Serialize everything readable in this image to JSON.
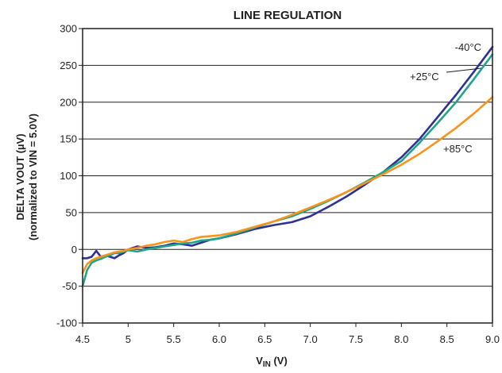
{
  "chart_data": {
    "type": "line",
    "title": "LINE REGULATION",
    "xlabel": {
      "main": "V",
      "sub": "IN",
      "unit": " (V)"
    },
    "ylabel": [
      "DELTA VOUT (µV)",
      "(normalized to VIN = 5.0V)"
    ],
    "xlim": [
      4.5,
      9.0
    ],
    "ylim": [
      -100,
      300
    ],
    "x_ticks": [
      4.5,
      5,
      5.5,
      6.0,
      6.5,
      7.0,
      7.5,
      8.0,
      8.5,
      9.0
    ],
    "x_tick_labels": [
      "4.5",
      "5",
      "5.5",
      "6.0",
      "6.5",
      "7.0",
      "7.5",
      "8.0",
      "8.5",
      "9.0"
    ],
    "y_ticks": [
      -100,
      -50,
      0,
      50,
      100,
      150,
      200,
      250,
      300
    ],
    "y_tick_labels": [
      "-100",
      "-50",
      "0",
      "50",
      "100",
      "150",
      "200",
      "250",
      "300"
    ],
    "grid": "horizontal",
    "series": [
      {
        "name": "-40°C",
        "color": "#2e3192",
        "x": [
          4.5,
          4.55,
          4.6,
          4.65,
          4.7,
          4.75,
          4.8,
          4.85,
          4.9,
          4.95,
          5.0,
          5.1,
          5.2,
          5.3,
          5.4,
          5.5,
          5.6,
          5.7,
          5.8,
          5.9,
          6.0,
          6.2,
          6.4,
          6.6,
          6.8,
          7.0,
          7.2,
          7.4,
          7.6,
          7.8,
          8.0,
          8.2,
          8.4,
          8.6,
          8.8,
          9.0
        ],
        "y": [
          -12,
          -12,
          -10,
          -2,
          -10,
          -8,
          -10,
          -12,
          -8,
          -5,
          0,
          4,
          2,
          3,
          5,
          8,
          7,
          5,
          9,
          13,
          15,
          21,
          28,
          33,
          37,
          45,
          58,
          72,
          88,
          105,
          125,
          150,
          180,
          210,
          242,
          275
        ]
      },
      {
        "name": "+25°C",
        "color": "#1fa58a",
        "x": [
          4.5,
          4.55,
          4.6,
          4.65,
          4.7,
          4.75,
          4.8,
          4.85,
          4.9,
          4.95,
          5.0,
          5.1,
          5.2,
          5.3,
          5.4,
          5.5,
          5.6,
          5.7,
          5.8,
          5.9,
          6.0,
          6.2,
          6.4,
          6.6,
          6.8,
          7.0,
          7.2,
          7.4,
          7.6,
          7.8,
          8.0,
          8.2,
          8.4,
          8.6,
          8.8,
          9.0
        ],
        "y": [
          -50,
          -28,
          -18,
          -15,
          -13,
          -10,
          -8,
          -5,
          -5,
          -3,
          -1,
          -3,
          0,
          2,
          4,
          6,
          8,
          9,
          12,
          13,
          15,
          22,
          30,
          38,
          45,
          55,
          66,
          78,
          91,
          105,
          120,
          145,
          172,
          200,
          232,
          265
        ]
      },
      {
        "name": "+85°C",
        "color": "#f7941d",
        "x": [
          4.5,
          4.55,
          4.6,
          4.65,
          4.7,
          4.75,
          4.8,
          4.85,
          4.9,
          4.95,
          5.0,
          5.1,
          5.2,
          5.3,
          5.4,
          5.5,
          5.6,
          5.7,
          5.8,
          5.9,
          6.0,
          6.2,
          6.4,
          6.6,
          6.8,
          7.0,
          7.2,
          7.4,
          7.6,
          7.8,
          8.0,
          8.2,
          8.4,
          8.6,
          8.8,
          9.0
        ],
        "y": [
          -32,
          -20,
          -15,
          -12,
          -10,
          -8,
          -6,
          -4,
          -3,
          -2,
          0,
          2,
          5,
          7,
          10,
          12,
          10,
          14,
          17,
          18,
          19,
          24,
          31,
          38,
          47,
          57,
          67,
          78,
          90,
          102,
          115,
          130,
          147,
          165,
          185,
          207
        ]
      }
    ],
    "annotations": [
      {
        "text": "-40°C",
        "color": "#231f20"
      },
      {
        "text": "+25°C",
        "color": "#231f20"
      },
      {
        "text": "+85°C",
        "color": "#231f20"
      }
    ],
    "style": {
      "axis_color": "#231f20",
      "grid_color": "#231f20"
    }
  }
}
